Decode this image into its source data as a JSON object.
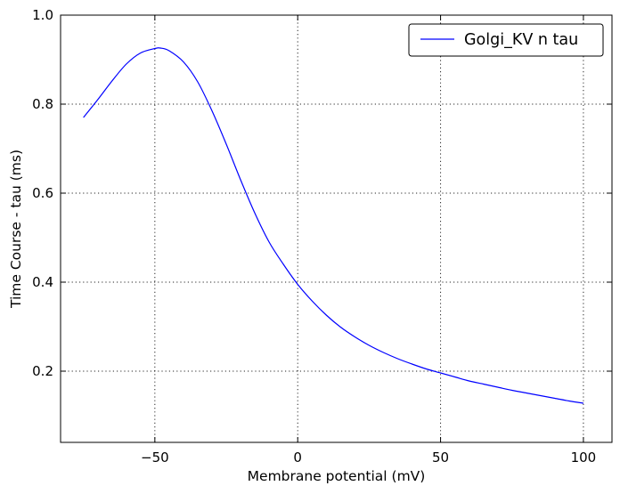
{
  "chart_data": {
    "type": "line",
    "xlabel": "Membrane potential (mV)",
    "ylabel": "Time Course - tau (ms)",
    "xlim": [
      -83,
      110
    ],
    "ylim": [
      0.04,
      1.0
    ],
    "x_ticks": [
      -50,
      0,
      50,
      100
    ],
    "x_tick_labels": [
      "−50",
      "0",
      "50",
      "100"
    ],
    "y_ticks": [
      0.2,
      0.4,
      0.6,
      0.8,
      1.0
    ],
    "y_tick_labels": [
      "0.2",
      "0.4",
      "0.6",
      "0.8",
      "1.0"
    ],
    "grid": true,
    "legend_position": "top-right",
    "series": [
      {
        "name": "Golgi_KV n tau",
        "color": "#0000ff",
        "x": [
          -75,
          -70,
          -65,
          -60,
          -55,
          -50,
          -48,
          -45,
          -40,
          -35,
          -30,
          -25,
          -20,
          -15,
          -10,
          -5,
          0,
          5,
          10,
          15,
          20,
          25,
          30,
          35,
          40,
          45,
          50,
          55,
          60,
          65,
          70,
          75,
          80,
          85,
          90,
          95,
          100
        ],
        "y": [
          0.77,
          0.81,
          0.852,
          0.89,
          0.915,
          0.925,
          0.926,
          0.92,
          0.895,
          0.85,
          0.785,
          0.71,
          0.63,
          0.555,
          0.49,
          0.44,
          0.395,
          0.358,
          0.326,
          0.299,
          0.277,
          0.258,
          0.242,
          0.228,
          0.216,
          0.205,
          0.196,
          0.187,
          0.178,
          0.171,
          0.164,
          0.157,
          0.151,
          0.145,
          0.139,
          0.133,
          0.128
        ]
      }
    ]
  }
}
